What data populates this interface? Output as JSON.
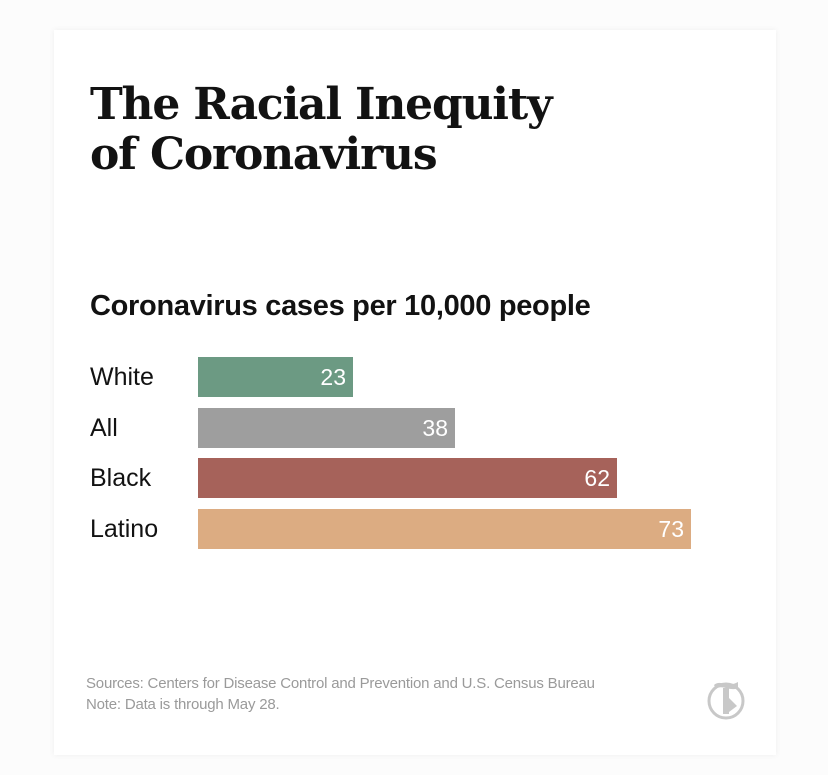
{
  "title_lines": [
    "The Racial Inequity",
    "of Coronavirus"
  ],
  "chart_data": {
    "type": "bar",
    "orientation": "horizontal",
    "title": "Coronavirus cases per 10,000 people",
    "categories": [
      "White",
      "All",
      "Black",
      "Latino"
    ],
    "values": [
      23,
      38,
      62,
      73
    ],
    "colors": [
      "#6c9a83",
      "#9e9e9e",
      "#a6625a",
      "#dcac82"
    ],
    "value_labels": [
      "23",
      "38",
      "62",
      "73"
    ],
    "xlabel": "",
    "ylabel": "",
    "xlim": [
      0,
      73
    ]
  },
  "footer": {
    "sources": "Sources: Centers for Disease Control and Prevention and U.S. Census Bureau",
    "note": "Note: Data is through May 28."
  },
  "logo": {
    "icon": "nyt-t-logo",
    "color": "#c8c8c8",
    "glyph": "T"
  }
}
